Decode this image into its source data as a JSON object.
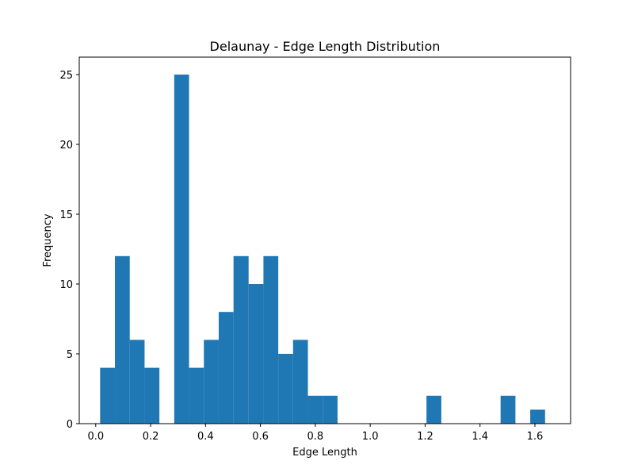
{
  "chart_data": {
    "type": "bar",
    "title": "Delaunay - Edge Length Distribution",
    "xlabel": "Edge Length",
    "ylabel": "Frequency",
    "xlim": [
      -0.06,
      1.73
    ],
    "ylim": [
      0,
      26.25
    ],
    "grid": false,
    "legend": "none",
    "color": "#1f77b4",
    "bin_width": 0.0541,
    "bins": [
      {
        "x0": 0.016,
        "x1": 0.07,
        "count": 4
      },
      {
        "x0": 0.07,
        "x1": 0.124,
        "count": 12
      },
      {
        "x0": 0.124,
        "x1": 0.178,
        "count": 6
      },
      {
        "x0": 0.178,
        "x1": 0.232,
        "count": 4
      },
      {
        "x0": 0.232,
        "x1": 0.286,
        "count": 0
      },
      {
        "x0": 0.286,
        "x1": 0.34,
        "count": 25
      },
      {
        "x0": 0.34,
        "x1": 0.394,
        "count": 4
      },
      {
        "x0": 0.394,
        "x1": 0.448,
        "count": 6
      },
      {
        "x0": 0.448,
        "x1": 0.502,
        "count": 8
      },
      {
        "x0": 0.502,
        "x1": 0.557,
        "count": 12
      },
      {
        "x0": 0.557,
        "x1": 0.611,
        "count": 10
      },
      {
        "x0": 0.611,
        "x1": 0.665,
        "count": 12
      },
      {
        "x0": 0.665,
        "x1": 0.719,
        "count": 5
      },
      {
        "x0": 0.719,
        "x1": 0.773,
        "count": 6
      },
      {
        "x0": 0.773,
        "x1": 0.827,
        "count": 2
      },
      {
        "x0": 0.827,
        "x1": 0.881,
        "count": 2
      },
      {
        "x0": 0.881,
        "x1": 0.935,
        "count": 0
      },
      {
        "x0": 0.935,
        "x1": 0.989,
        "count": 0
      },
      {
        "x0": 0.989,
        "x1": 1.043,
        "count": 0
      },
      {
        "x0": 1.043,
        "x1": 1.097,
        "count": 0
      },
      {
        "x0": 1.097,
        "x1": 1.151,
        "count": 0
      },
      {
        "x0": 1.151,
        "x1": 1.205,
        "count": 0
      },
      {
        "x0": 1.205,
        "x1": 1.259,
        "count": 2
      },
      {
        "x0": 1.259,
        "x1": 1.313,
        "count": 0
      },
      {
        "x0": 1.313,
        "x1": 1.367,
        "count": 0
      },
      {
        "x0": 1.367,
        "x1": 1.421,
        "count": 0
      },
      {
        "x0": 1.421,
        "x1": 1.475,
        "count": 0
      },
      {
        "x0": 1.475,
        "x1": 1.529,
        "count": 2
      },
      {
        "x0": 1.529,
        "x1": 1.583,
        "count": 0
      },
      {
        "x0": 1.583,
        "x1": 1.637,
        "count": 1
      }
    ],
    "x_ticks": [
      {
        "value": 0.0,
        "label": "0.0"
      },
      {
        "value": 0.2,
        "label": "0.2"
      },
      {
        "value": 0.4,
        "label": "0.4"
      },
      {
        "value": 0.6,
        "label": "0.6"
      },
      {
        "value": 0.8,
        "label": "0.8"
      },
      {
        "value": 1.0,
        "label": "1.0"
      },
      {
        "value": 1.2,
        "label": "1.2"
      },
      {
        "value": 1.4,
        "label": "1.4"
      },
      {
        "value": 1.6,
        "label": "1.6"
      }
    ],
    "y_ticks": [
      {
        "value": 0,
        "label": "0"
      },
      {
        "value": 5,
        "label": "5"
      },
      {
        "value": 10,
        "label": "10"
      },
      {
        "value": 15,
        "label": "15"
      },
      {
        "value": 20,
        "label": "20"
      },
      {
        "value": 25,
        "label": "25"
      }
    ]
  }
}
